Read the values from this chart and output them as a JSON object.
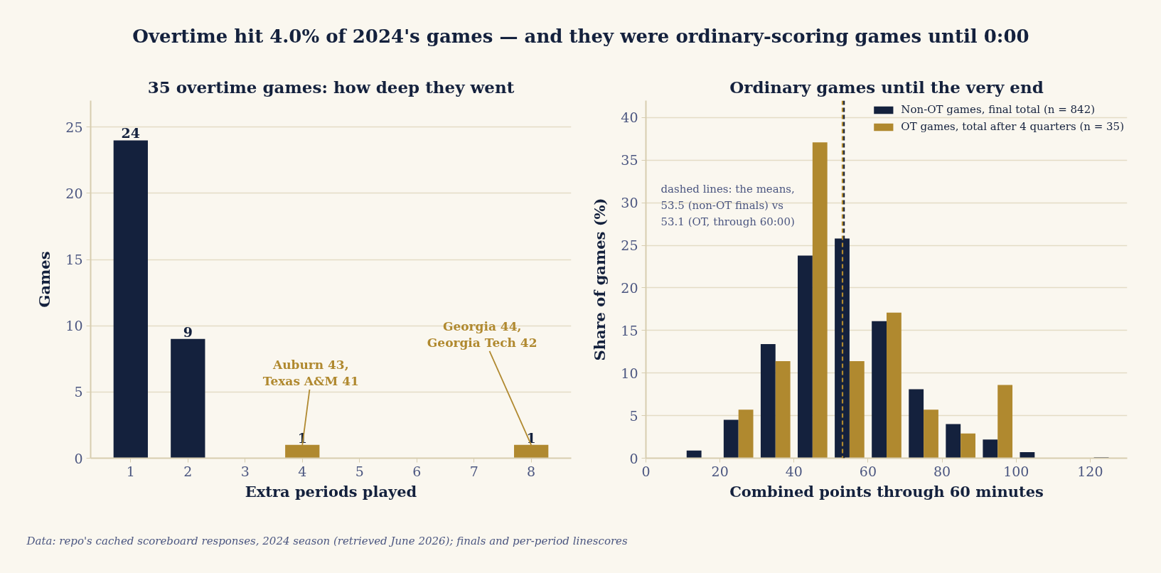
{
  "chart_data": [
    {
      "type": "other",
      "title": "Overtime hit 4.0% of 2024's games — and they were ordinary-scoring games until 0:00"
    },
    {
      "type": "bar",
      "title": "35 overtime games: how deep they went",
      "xlabel": "Extra periods played",
      "ylabel": "Games",
      "x": [
        1,
        2,
        4,
        8
      ],
      "values": [
        24,
        9,
        1,
        1
      ],
      "colors": [
        "#14213d",
        "#14213d",
        "#b0892f",
        "#b0892f"
      ],
      "xlim": [
        0.3,
        8.7
      ],
      "xticks": [
        1,
        2,
        3,
        4,
        5,
        6,
        7,
        8
      ],
      "ylim": [
        0,
        27
      ],
      "yticks": [
        0,
        5,
        10,
        15,
        20,
        25
      ],
      "grid": "y",
      "data_labels": true,
      "annotations": [
        {
          "text": "Auburn 43,\nTexas A&M 41",
          "x": 4,
          "y": 1
        },
        {
          "text": "Georgia 44,\nGeorgia Tech 42",
          "x": 8,
          "y": 1
        }
      ]
    },
    {
      "type": "histogram",
      "title": "Ordinary games until the very end",
      "xlabel": "Combined points through 60 minutes",
      "ylabel": "Share of games (%)",
      "bins": [
        10,
        20,
        30,
        40,
        50,
        60,
        70,
        80,
        90,
        100,
        110,
        120,
        130
      ],
      "series": [
        {
          "name": "Non-OT games, final total (n = 842)",
          "color": "#14213d",
          "values": [
            0.9,
            4.5,
            13.4,
            23.8,
            25.8,
            16.1,
            8.1,
            4.0,
            2.2,
            0.7,
            0,
            0.1
          ]
        },
        {
          "name": "OT games, total after 4 quarters (n = 35)",
          "color": "#b0892f",
          "values": [
            0,
            5.7,
            11.4,
            37.1,
            11.4,
            17.1,
            5.7,
            2.9,
            8.6,
            0,
            0,
            0
          ]
        }
      ],
      "xlim": [
        0,
        130
      ],
      "xticks": [
        0,
        20,
        40,
        60,
        80,
        100,
        120
      ],
      "ylim": [
        0,
        42
      ],
      "yticks": [
        0,
        5,
        10,
        15,
        20,
        25,
        30,
        35,
        40
      ],
      "grid": "y",
      "legend": "top right",
      "ref_lines": [
        {
          "axis": "x",
          "value": 53.5,
          "color": "#14213d",
          "line_style": "dashed"
        },
        {
          "axis": "x",
          "value": 53.1,
          "color": "#b0892f",
          "line_style": "dashed"
        }
      ],
      "annotations": [
        "dashed lines: the means,\n53.5 (non-OT finals) vs\n53.1 (OT, through 60:00)"
      ]
    },
    {
      "type": "other",
      "annotations": [
        "Data: repo's cached scoreboard responses, 2024 season (retrieved June 2026); finals and per-period linescores"
      ]
    }
  ]
}
